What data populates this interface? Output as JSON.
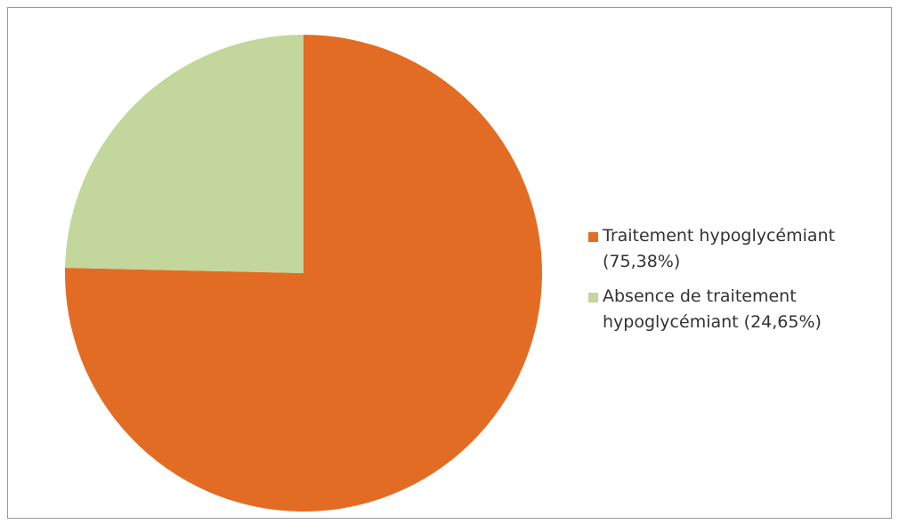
{
  "chart_data": {
    "type": "pie",
    "title": "",
    "start_angle_deg": 0,
    "direction": "clockwise",
    "slices": [
      {
        "label": "Traitement hypoglycémiant (75,38%)",
        "value": 75.38,
        "color": "#E36C24"
      },
      {
        "label": "Absence de traitement hypoglycémiant (24,65%)",
        "value": 24.65,
        "color": "#C3D69B"
      }
    ],
    "legend": {
      "position": "right",
      "entries": [
        {
          "text": "Traitement hypoglycémiant (75,38%)",
          "color": "#E36C24"
        },
        {
          "text": "Absence de traitement hypoglycémiant (24,65%)",
          "color": "#C3D69B"
        }
      ]
    }
  }
}
